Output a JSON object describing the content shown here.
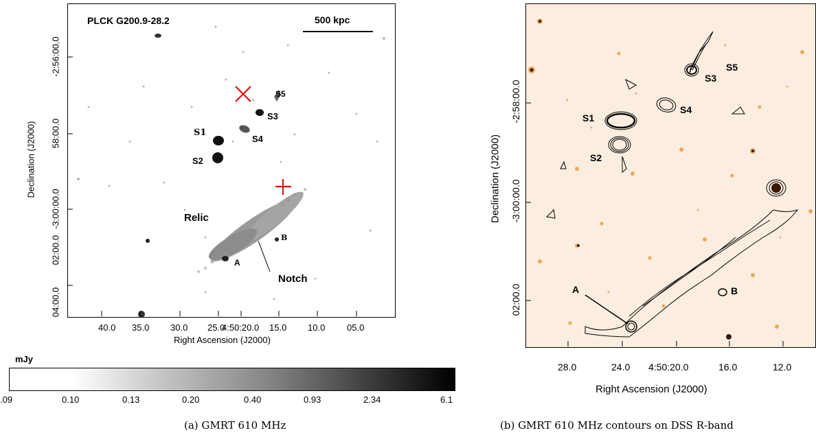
{
  "panel_a": {
    "cluster_name": "PLCK G200.9-28.2",
    "scalebar_label": "500 kpc",
    "xlabel": "Right Ascension (J2000)",
    "ylabel": "Declination (J2000)",
    "x_ticks": [
      "40.0",
      "35.0",
      "30.0",
      "25.0",
      "4:50:20.0",
      "15.0",
      "10.0",
      "05.0"
    ],
    "y_ticks": [
      "-2:56:00.0",
      "58:00.0",
      "-3:00:00.0",
      "02:00.0",
      "04:00.0"
    ],
    "sources": {
      "s1": "S1",
      "s2": "S2",
      "s3": "S3",
      "s4": "S4",
      "s5": "S5",
      "a": "A",
      "b": "B"
    },
    "relic_label": "Relic",
    "notch_label": "Notch",
    "colorbar": {
      "unit": "mJy",
      "ticks": [
        ".09",
        "0.10",
        "0.13",
        "0.20",
        "0.40",
        "0.93",
        "2.34",
        "6.1"
      ]
    },
    "caption": "(a) GMRT 610 MHz",
    "marker_colors": {
      "cross": "#e01010"
    }
  },
  "panel_b": {
    "xlabel": "Right Ascension (J2000)",
    "ylabel": "Declination (J2000)",
    "x_ticks": [
      "28.0",
      "24.0",
      "4:50:20.0",
      "16.0",
      "12.0"
    ],
    "y_ticks": [
      "-2:58:00.0",
      "-3:00:00.0",
      "02:00.0"
    ],
    "sources": {
      "s1": "S1",
      "s2": "S2",
      "s3": "S3",
      "s4": "S4",
      "s5": "S5",
      "a": "A",
      "b": "B"
    },
    "caption": "(b) GMRT 610 MHz contours on DSS R-band",
    "background_color": "#fbeee0"
  }
}
